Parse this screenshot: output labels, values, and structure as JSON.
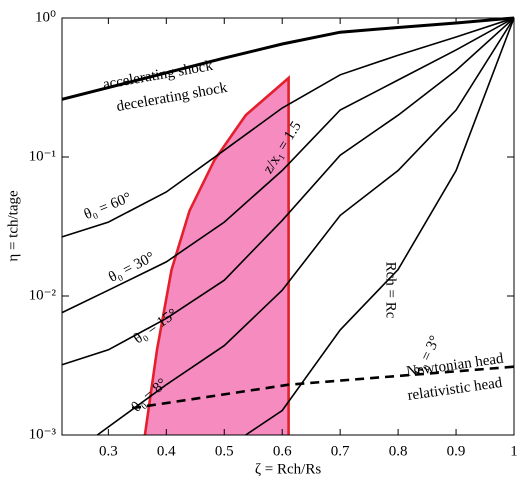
{
  "chart_data": {
    "type": "line",
    "xlabel": "ζ = Rch/Rs",
    "ylabel": "η = tch/tage",
    "xlim": [
      0.22,
      1
    ],
    "ylim": [
      0.001,
      1
    ],
    "yscale": "log",
    "xticks": [
      0.3,
      0.4,
      0.5,
      0.6,
      0.7,
      0.8,
      0.9,
      1
    ],
    "yticks": [
      {
        "value": 0.001,
        "label": "10⁻³"
      },
      {
        "value": 0.01,
        "label": "10⁻²"
      },
      {
        "value": 0.1,
        "label": "10⁻¹"
      },
      {
        "value": 1,
        "label": "10⁰"
      }
    ],
    "grid": false,
    "region": {
      "color": "#f58bbf",
      "edge_color": "#e3202b",
      "x": [
        0.363,
        0.384,
        0.409,
        0.44,
        0.483,
        0.537,
        0.611,
        0.611
      ],
      "values": [
        0.001,
        0.0041,
        0.0154,
        0.041,
        0.095,
        0.2,
        0.37,
        0.001
      ]
    },
    "series": [
      {
        "color": "#000000",
        "width": 3,
        "dash": false,
        "x": [
          0.22,
          0.5,
          0.6,
          0.7,
          0.8,
          0.9,
          1
        ],
        "values": [
          0.26,
          0.515,
          0.65,
          0.79,
          0.855,
          0.92,
          1
        ]
      },
      {
        "color": "#000000",
        "width": 1.6,
        "dash": false,
        "x": [
          0.22,
          0.3,
          0.4,
          0.5,
          0.6,
          0.7,
          0.8,
          0.9,
          1
        ],
        "values": [
          0.0266,
          0.034,
          0.056,
          0.112,
          0.225,
          0.39,
          0.54,
          0.73,
          1
        ]
      },
      {
        "color": "#000000",
        "width": 1.6,
        "dash": false,
        "x": [
          0.22,
          0.3,
          0.4,
          0.5,
          0.6,
          0.7,
          0.8,
          0.9,
          1
        ],
        "values": [
          0.0076,
          0.011,
          0.0176,
          0.034,
          0.08,
          0.218,
          0.358,
          0.59,
          1
        ]
      },
      {
        "color": "#000000",
        "width": 1.6,
        "dash": false,
        "x": [
          0.22,
          0.3,
          0.4,
          0.5,
          0.6,
          0.7,
          0.8,
          0.9,
          1
        ],
        "values": [
          0.0032,
          0.0041,
          0.0069,
          0.013,
          0.035,
          0.103,
          0.2,
          0.42,
          1
        ]
      },
      {
        "color": "#000000",
        "width": 1.6,
        "dash": false,
        "x": [
          0.281,
          0.4,
          0.5,
          0.6,
          0.7,
          0.8,
          0.9,
          1
        ],
        "values": [
          0.001,
          0.0023,
          0.0044,
          0.011,
          0.038,
          0.08,
          0.218,
          1
        ]
      },
      {
        "color": "#000000",
        "width": 1.6,
        "dash": false,
        "x": [
          0.537,
          0.6,
          0.7,
          0.8,
          0.9,
          1
        ],
        "values": [
          0.001,
          0.0015,
          0.0057,
          0.0155,
          0.08,
          1
        ]
      },
      {
        "color": "#000000",
        "width": 2.6,
        "dash": true,
        "x": [
          0.341,
          0.611,
          1
        ],
        "values": [
          0.00156,
          0.0023,
          0.0031
        ]
      }
    ],
    "annotations": [
      {
        "text": "accelerating shock"
      },
      {
        "text": "decelerating shock"
      },
      {
        "text": "θ₀ = 60°"
      },
      {
        "text": "θ₀ = 30°"
      },
      {
        "text": "θ₀ = 15°"
      },
      {
        "text": "θ₀ = 8°"
      },
      {
        "text": "θ₀ = 3°"
      },
      {
        "text": "Newtonian head"
      },
      {
        "text": "relativistic head"
      },
      {
        "text": "z/x₁ = 1.5",
        "color": "#e3202b"
      },
      {
        "text": "Rch = Rc",
        "color": "#e3202b"
      }
    ]
  }
}
